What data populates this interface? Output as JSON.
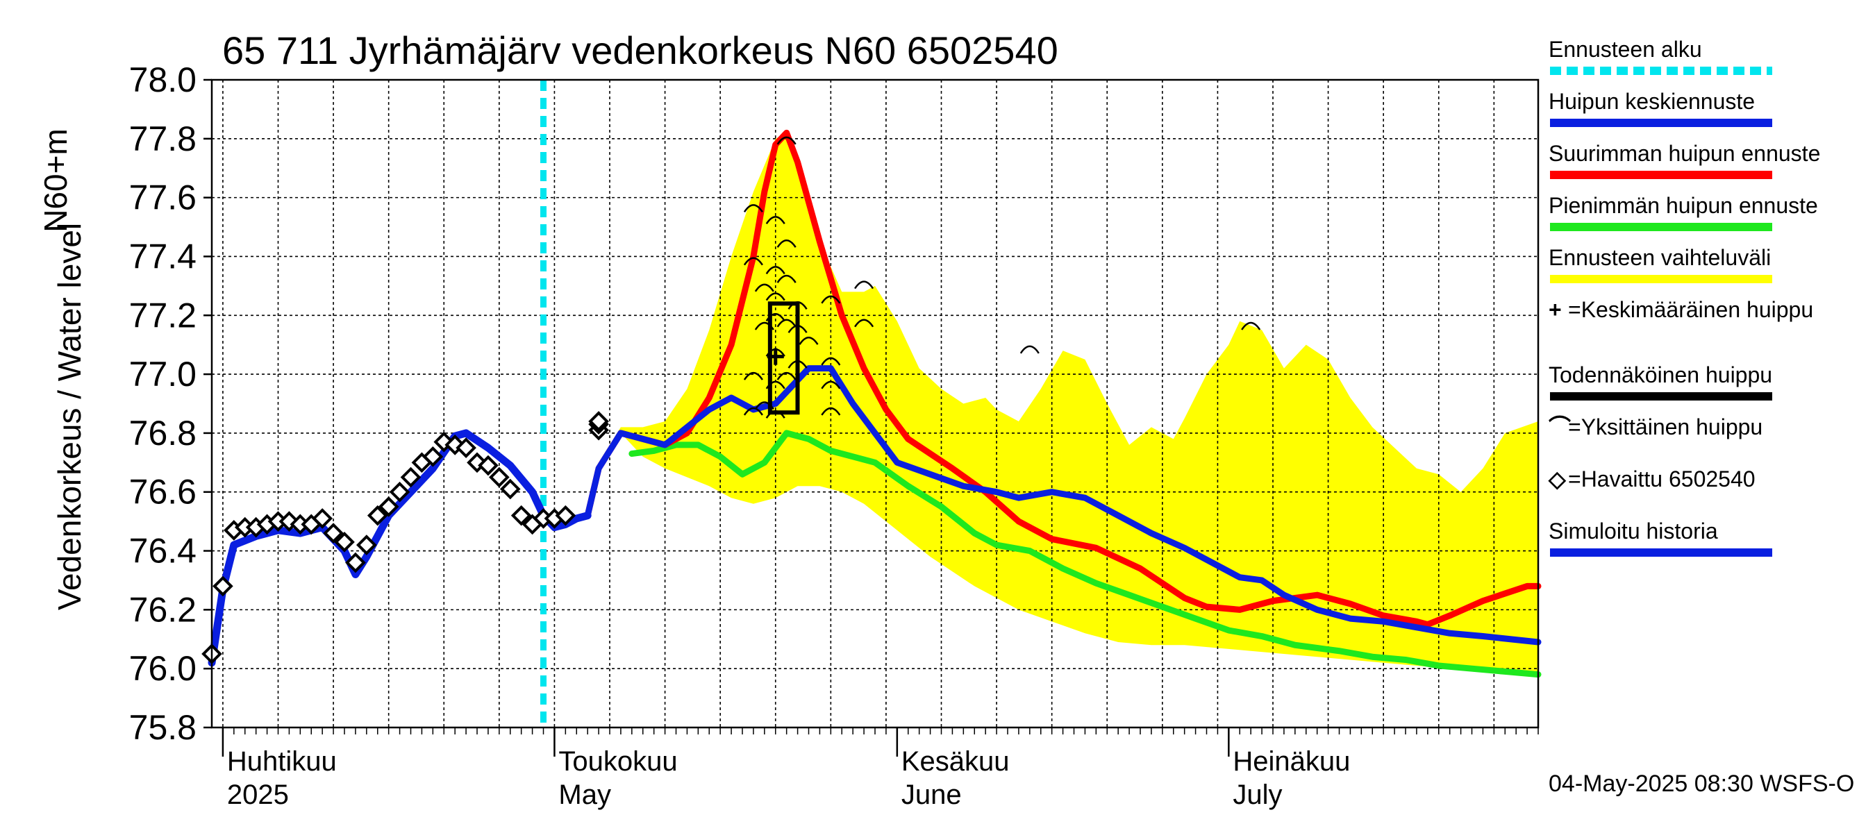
{
  "title": "65 711 Jyrhämäjärv vedenkorkeus N60 6502540",
  "ylabel_main": "Vedenkorkeus / Water level",
  "ylabel_unit": "N60+m",
  "footer": "04-May-2025 08:30 WSFS-O",
  "colors": {
    "forecast_start": "#00e5ee",
    "mean_forecast": "#0a1fe0",
    "max_forecast": "#ff0000",
    "min_forecast": "#1ee81e",
    "band": "#ffff00",
    "observed": "#000000",
    "simulated": "#0a1fe0"
  },
  "legend": [
    {
      "key": "forecast_start",
      "label": "Ennusteen alku",
      "style": "dashed"
    },
    {
      "key": "mean_forecast",
      "label": "Huipun keskiennuste",
      "style": "solid"
    },
    {
      "key": "max_forecast",
      "label": "Suurimman huipun ennuste",
      "style": "solid"
    },
    {
      "key": "min_forecast",
      "label": "Pienimmän huipun ennuste",
      "style": "solid"
    },
    {
      "key": "band",
      "label": "Ennusteen vaihteluväli",
      "style": "solid"
    },
    {
      "key": "mean_peak",
      "label": "=Keskimääräinen huippu",
      "style": "symbol",
      "symbol": "+"
    },
    {
      "key": "likely_peak",
      "label": "Todennäköinen huippu",
      "style": "solid"
    },
    {
      "key": "single_peak",
      "label": "=Yksittäinen huippu",
      "style": "symbol",
      "symbol": "⌒"
    },
    {
      "key": "observed",
      "label": "=Havaittu 6502540",
      "style": "symbol",
      "symbol": "◇"
    },
    {
      "key": "simulated",
      "label": "Simuloitu historia",
      "style": "solid"
    }
  ],
  "chart_data": {
    "type": "line",
    "x_unit": "day of year 2025",
    "xlim": [
      90,
      210
    ],
    "ylim": [
      75.8,
      78.0
    ],
    "yticks": [
      75.8,
      76.0,
      76.2,
      76.4,
      76.6,
      76.8,
      77.0,
      77.2,
      77.4,
      77.6,
      77.8,
      78.0
    ],
    "ytick_labels": [
      "75.8",
      "76.0",
      "76.2",
      "76.4",
      "76.6",
      "76.8",
      "77.0",
      "77.2",
      "77.4",
      "77.6",
      "77.8",
      "78.0"
    ],
    "month_ticks": [
      {
        "day": 91,
        "label1": "Huhtikuu",
        "label2": "2025"
      },
      {
        "day": 121,
        "label1": "Toukokuu",
        "label2": "May"
      },
      {
        "day": 152,
        "label1": "Kesäkuu",
        "label2": "June"
      },
      {
        "day": 182,
        "label1": "Heinäkuu",
        "label2": "July"
      }
    ],
    "grid": true,
    "forecast_start_day": 120,
    "series": [
      {
        "name": "Simuloitu historia",
        "key": "simulated",
        "points": [
          [
            90,
            76.02
          ],
          [
            91,
            76.27
          ],
          [
            92,
            76.42
          ],
          [
            94,
            76.45
          ],
          [
            96,
            76.47
          ],
          [
            98,
            76.46
          ],
          [
            100,
            76.48
          ],
          [
            102,
            76.4
          ],
          [
            103,
            76.32
          ],
          [
            104,
            76.38
          ],
          [
            106,
            76.52
          ],
          [
            108,
            76.6
          ],
          [
            110,
            76.68
          ],
          [
            112,
            76.79
          ],
          [
            113,
            76.8
          ],
          [
            115,
            76.75
          ],
          [
            117,
            76.69
          ],
          [
            119,
            76.6
          ],
          [
            120,
            76.52
          ],
          [
            121,
            76.48
          ],
          [
            122,
            76.49
          ],
          [
            123,
            76.51
          ],
          [
            124,
            76.52
          ]
        ]
      },
      {
        "name": "Suurimman huipun ennuste",
        "key": "max_forecast",
        "points": [
          [
            124,
            76.52
          ],
          [
            125,
            76.68
          ],
          [
            127,
            76.8
          ],
          [
            129,
            76.78
          ],
          [
            131,
            76.76
          ],
          [
            133,
            76.8
          ],
          [
            135,
            76.92
          ],
          [
            137,
            77.1
          ],
          [
            139,
            77.4
          ],
          [
            140,
            77.62
          ],
          [
            141,
            77.78
          ],
          [
            142,
            77.82
          ],
          [
            143,
            77.72
          ],
          [
            145,
            77.45
          ],
          [
            147,
            77.2
          ],
          [
            149,
            77.02
          ],
          [
            151,
            76.88
          ],
          [
            153,
            76.78
          ],
          [
            157,
            76.68
          ],
          [
            160,
            76.6
          ],
          [
            163,
            76.5
          ],
          [
            166,
            76.44
          ],
          [
            170,
            76.41
          ],
          [
            174,
            76.34
          ],
          [
            178,
            76.24
          ],
          [
            180,
            76.21
          ],
          [
            183,
            76.2
          ],
          [
            186,
            76.23
          ],
          [
            188,
            76.24
          ],
          [
            190,
            76.25
          ],
          [
            193,
            76.22
          ],
          [
            196,
            76.18
          ],
          [
            199,
            76.16
          ],
          [
            200,
            76.15
          ],
          [
            202,
            76.18
          ],
          [
            205,
            76.23
          ],
          [
            209,
            76.28
          ],
          [
            210,
            76.28
          ]
        ]
      },
      {
        "name": "Huipun keskiennuste",
        "key": "mean_forecast",
        "points": [
          [
            124,
            76.52
          ],
          [
            125,
            76.68
          ],
          [
            127,
            76.8
          ],
          [
            129,
            76.78
          ],
          [
            131,
            76.76
          ],
          [
            133,
            76.82
          ],
          [
            135,
            76.88
          ],
          [
            137,
            76.92
          ],
          [
            139,
            76.88
          ],
          [
            141,
            76.9
          ],
          [
            143,
            76.98
          ],
          [
            144,
            77.02
          ],
          [
            146,
            77.02
          ],
          [
            148,
            76.9
          ],
          [
            150,
            76.8
          ],
          [
            152,
            76.7
          ],
          [
            155,
            76.66
          ],
          [
            158,
            76.62
          ],
          [
            161,
            76.6
          ],
          [
            163,
            76.58
          ],
          [
            166,
            76.6
          ],
          [
            169,
            76.58
          ],
          [
            172,
            76.52
          ],
          [
            175,
            76.46
          ],
          [
            178,
            76.41
          ],
          [
            181,
            76.35
          ],
          [
            183,
            76.31
          ],
          [
            185,
            76.3
          ],
          [
            187,
            76.25
          ],
          [
            190,
            76.2
          ],
          [
            193,
            76.17
          ],
          [
            196,
            76.16
          ],
          [
            199,
            76.14
          ],
          [
            202,
            76.12
          ],
          [
            205,
            76.11
          ],
          [
            210,
            76.09
          ]
        ]
      },
      {
        "name": "Pienimmän huipun ennuste",
        "key": "min_forecast",
        "points": [
          [
            128,
            76.73
          ],
          [
            130,
            76.74
          ],
          [
            132,
            76.76
          ],
          [
            134,
            76.76
          ],
          [
            136,
            76.72
          ],
          [
            138,
            76.66
          ],
          [
            140,
            76.7
          ],
          [
            142,
            76.8
          ],
          [
            144,
            76.78
          ],
          [
            146,
            76.74
          ],
          [
            148,
            76.72
          ],
          [
            150,
            76.7
          ],
          [
            153,
            76.62
          ],
          [
            156,
            76.55
          ],
          [
            159,
            76.46
          ],
          [
            161,
            76.42
          ],
          [
            164,
            76.4
          ],
          [
            167,
            76.34
          ],
          [
            170,
            76.29
          ],
          [
            173,
            76.25
          ],
          [
            176,
            76.21
          ],
          [
            179,
            76.17
          ],
          [
            182,
            76.13
          ],
          [
            185,
            76.11
          ],
          [
            188,
            76.08
          ],
          [
            190,
            76.07
          ],
          [
            192,
            76.06
          ],
          [
            195,
            76.04
          ],
          [
            198,
            76.03
          ],
          [
            201,
            76.01
          ],
          [
            204,
            76.0
          ],
          [
            207,
            75.99
          ],
          [
            210,
            75.98
          ]
        ]
      }
    ],
    "band": {
      "upper": [
        [
          124,
          76.52
        ],
        [
          125,
          76.7
        ],
        [
          127,
          76.82
        ],
        [
          129,
          76.82
        ],
        [
          131,
          76.84
        ],
        [
          133,
          76.95
        ],
        [
          135,
          77.15
        ],
        [
          137,
          77.4
        ],
        [
          139,
          77.62
        ],
        [
          141,
          77.8
        ],
        [
          142,
          77.82
        ],
        [
          143,
          77.72
        ],
        [
          145,
          77.45
        ],
        [
          147,
          77.28
        ],
        [
          149,
          77.28
        ],
        [
          150,
          77.3
        ],
        [
          152,
          77.18
        ],
        [
          154,
          77.02
        ],
        [
          156,
          76.95
        ],
        [
          158,
          76.9
        ],
        [
          160,
          76.92
        ],
        [
          161,
          76.88
        ],
        [
          163,
          76.84
        ],
        [
          165,
          76.95
        ],
        [
          167,
          77.08
        ],
        [
          169,
          77.05
        ],
        [
          171,
          76.9
        ],
        [
          173,
          76.76
        ],
        [
          175,
          76.82
        ],
        [
          177,
          76.78
        ],
        [
          178,
          76.85
        ],
        [
          180,
          77.0
        ],
        [
          182,
          77.1
        ],
        [
          183,
          77.18
        ],
        [
          185,
          77.15
        ],
        [
          187,
          77.02
        ],
        [
          189,
          77.1
        ],
        [
          191,
          77.05
        ],
        [
          193,
          76.92
        ],
        [
          195,
          76.82
        ],
        [
          197,
          76.75
        ],
        [
          199,
          76.68
        ],
        [
          201,
          76.66
        ],
        [
          203,
          76.6
        ],
        [
          205,
          76.68
        ],
        [
          207,
          76.8
        ],
        [
          210,
          76.84
        ]
      ],
      "lower": [
        [
          124,
          76.52
        ],
        [
          125,
          76.68
        ],
        [
          127,
          76.8
        ],
        [
          129,
          76.72
        ],
        [
          131,
          76.68
        ],
        [
          133,
          76.65
        ],
        [
          135,
          76.62
        ],
        [
          137,
          76.58
        ],
        [
          139,
          76.56
        ],
        [
          141,
          76.58
        ],
        [
          143,
          76.62
        ],
        [
          145,
          76.62
        ],
        [
          147,
          76.6
        ],
        [
          149,
          76.56
        ],
        [
          151,
          76.5
        ],
        [
          153,
          76.44
        ],
        [
          155,
          76.38
        ],
        [
          157,
          76.33
        ],
        [
          159,
          76.28
        ],
        [
          161,
          76.24
        ],
        [
          163,
          76.2
        ],
        [
          166,
          76.16
        ],
        [
          169,
          76.12
        ],
        [
          172,
          76.09
        ],
        [
          175,
          76.08
        ],
        [
          178,
          76.08
        ],
        [
          181,
          76.07
        ],
        [
          184,
          76.06
        ],
        [
          187,
          76.05
        ],
        [
          190,
          76.04
        ],
        [
          193,
          76.03
        ],
        [
          196,
          76.02
        ],
        [
          199,
          76.01
        ],
        [
          202,
          76.0
        ],
        [
          205,
          75.99
        ],
        [
          210,
          75.98
        ]
      ]
    },
    "observed": [
      [
        90,
        76.05
      ],
      [
        91,
        76.28
      ],
      [
        92,
        76.47
      ],
      [
        93,
        76.48
      ],
      [
        94,
        76.48
      ],
      [
        95,
        76.49
      ],
      [
        96,
        76.5
      ],
      [
        97,
        76.5
      ],
      [
        98,
        76.49
      ],
      [
        99,
        76.49
      ],
      [
        100,
        76.51
      ],
      [
        101,
        76.46
      ],
      [
        102,
        76.43
      ],
      [
        103,
        76.36
      ],
      [
        104,
        76.42
      ],
      [
        105,
        76.52
      ],
      [
        106,
        76.55
      ],
      [
        107,
        76.6
      ],
      [
        108,
        76.65
      ],
      [
        109,
        76.7
      ],
      [
        110,
        76.72
      ],
      [
        111,
        76.77
      ],
      [
        112,
        76.76
      ],
      [
        113,
        76.75
      ],
      [
        114,
        76.7
      ],
      [
        115,
        76.69
      ],
      [
        116,
        76.65
      ],
      [
        117,
        76.61
      ],
      [
        118,
        76.52
      ],
      [
        119,
        76.49
      ],
      [
        120,
        76.51
      ],
      [
        121,
        76.51
      ],
      [
        122,
        76.52
      ],
      [
        125,
        76.81
      ],
      [
        125,
        76.83
      ],
      [
        125,
        76.84
      ]
    ],
    "single_peaks": [
      [
        139,
        77.57
      ],
      [
        139,
        77.39
      ],
      [
        139,
        77.0
      ],
      [
        139,
        76.88
      ],
      [
        140,
        77.3
      ],
      [
        140,
        77.17
      ],
      [
        140,
        76.9
      ],
      [
        141,
        77.53
      ],
      [
        141,
        77.36
      ],
      [
        141,
        77.27
      ],
      [
        141,
        77.2
      ],
      [
        141,
        77.08
      ],
      [
        141,
        76.97
      ],
      [
        141,
        76.87
      ],
      [
        142,
        77.8
      ],
      [
        142,
        77.45
      ],
      [
        142,
        77.33
      ],
      [
        142,
        77.18
      ],
      [
        142,
        77.0
      ],
      [
        143,
        77.24
      ],
      [
        143,
        77.16
      ],
      [
        143,
        77.04
      ],
      [
        144,
        77.12
      ],
      [
        146,
        77.26
      ],
      [
        146,
        77.05
      ],
      [
        146,
        76.97
      ],
      [
        146,
        76.88
      ],
      [
        149,
        77.31
      ],
      [
        149,
        77.18
      ],
      [
        164,
        77.09
      ],
      [
        184,
        77.17
      ]
    ],
    "mean_peak": [
      141,
      77.06
    ],
    "likely_peak_box": {
      "x0": 140,
      "x1": 144,
      "y0": 76.87,
      "y1": 77.24
    }
  }
}
